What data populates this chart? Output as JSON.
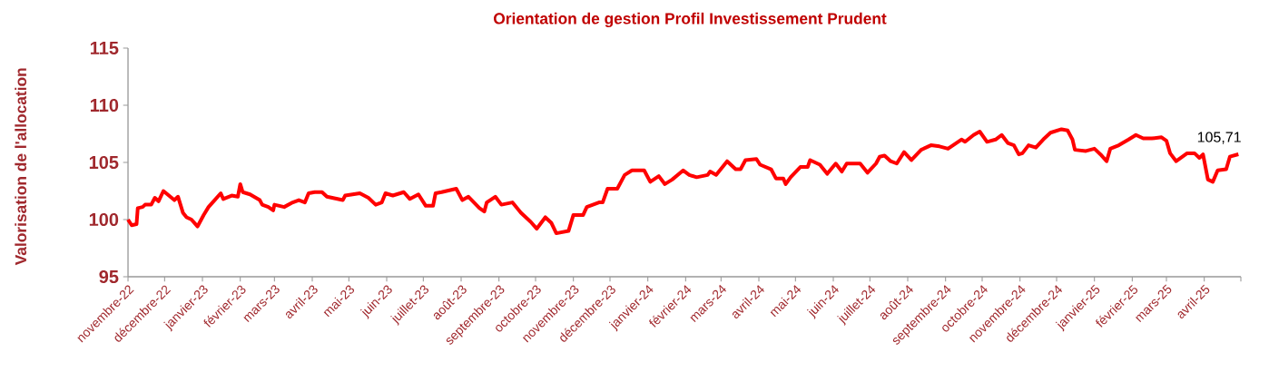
{
  "chart_data": {
    "type": "line",
    "title": "Orientation de gestion Profil Investissement Prudent",
    "ylabel": "Valorisation de l'allocation",
    "xlim": [
      "2022-11-01",
      "2025-05-01"
    ],
    "xticks": [
      {
        "value": "2022-11-01",
        "label": "novembre-22"
      },
      {
        "value": "2022-12-01",
        "label": "décembre-22"
      },
      {
        "value": "2023-01-01",
        "label": "janvier-23"
      },
      {
        "value": "2023-02-01",
        "label": "février-23"
      },
      {
        "value": "2023-03-01",
        "label": "mars-23"
      },
      {
        "value": "2023-04-01",
        "label": "avril-23"
      },
      {
        "value": "2023-05-01",
        "label": "mai-23"
      },
      {
        "value": "2023-06-01",
        "label": "juin-23"
      },
      {
        "value": "2023-07-01",
        "label": "juillet-23"
      },
      {
        "value": "2023-08-01",
        "label": "août-23"
      },
      {
        "value": "2023-09-01",
        "label": "septembre-23"
      },
      {
        "value": "2023-10-01",
        "label": "octobre-23"
      },
      {
        "value": "2023-11-01",
        "label": "novembre-23"
      },
      {
        "value": "2023-12-01",
        "label": "décembre-23"
      },
      {
        "value": "2024-01-01",
        "label": "janvier-24"
      },
      {
        "value": "2024-02-01",
        "label": "février-24"
      },
      {
        "value": "2024-03-01",
        "label": "mars-24"
      },
      {
        "value": "2024-04-01",
        "label": "avril-24"
      },
      {
        "value": "2024-05-01",
        "label": "mai-24"
      },
      {
        "value": "2024-06-01",
        "label": "juin-24"
      },
      {
        "value": "2024-07-01",
        "label": "juillet-24"
      },
      {
        "value": "2024-08-01",
        "label": "août-24"
      },
      {
        "value": "2024-09-01",
        "label": "septembre-24"
      },
      {
        "value": "2024-10-01",
        "label": "octobre-24"
      },
      {
        "value": "2024-11-01",
        "label": "novembre-24"
      },
      {
        "value": "2024-12-01",
        "label": "décembre-24"
      },
      {
        "value": "2025-01-01",
        "label": "janvier-25"
      },
      {
        "value": "2025-02-01",
        "label": "février-25"
      },
      {
        "value": "2025-03-01",
        "label": "mars-25"
      },
      {
        "value": "2025-04-01",
        "label": "avril-25"
      },
      {
        "value": "2025-05-01",
        "label": null
      }
    ],
    "ylim": [
      95,
      115
    ],
    "yticks": [
      95,
      100,
      105,
      110,
      115
    ],
    "grid": false,
    "marker": "none",
    "line_style": "solid",
    "annotations": [
      {
        "text": "105,71",
        "x": "2025-04-29",
        "y": 105.71
      }
    ],
    "series": [
      {
        "color": "#ff0000",
        "x": [
          "2022-11-01",
          "2022-11-04",
          "2022-11-08",
          "2022-11-09",
          "2022-11-13",
          "2022-11-15",
          "2022-11-20",
          "2022-11-23",
          "2022-11-26",
          "2022-11-30",
          "2022-12-09",
          "2022-12-12",
          "2022-12-16",
          "2022-12-19",
          "2022-12-23",
          "2022-12-28",
          "2023-01-02",
          "2023-01-06",
          "2023-01-11",
          "2023-01-16",
          "2023-01-18",
          "2023-01-25",
          "2023-01-30",
          "2023-02-01",
          "2023-02-03",
          "2023-02-09",
          "2023-02-17",
          "2023-02-19",
          "2023-02-24",
          "2023-02-28",
          "2023-03-01",
          "2023-03-09",
          "2023-03-16",
          "2023-03-21",
          "2023-03-26",
          "2023-03-29",
          "2023-04-03",
          "2023-04-09",
          "2023-04-13",
          "2023-04-26",
          "2023-04-28",
          "2023-05-10",
          "2023-05-17",
          "2023-05-23",
          "2023-05-28",
          "2023-05-31",
          "2023-06-06",
          "2023-06-15",
          "2023-06-20",
          "2023-06-27",
          "2023-07-03",
          "2023-07-09",
          "2023-07-11",
          "2023-07-16",
          "2023-07-28",
          "2023-08-02",
          "2023-08-07",
          "2023-08-16",
          "2023-08-20",
          "2023-08-22",
          "2023-08-29",
          "2023-09-03",
          "2023-09-12",
          "2023-09-19",
          "2023-09-27",
          "2023-10-02",
          "2023-10-09",
          "2023-10-14",
          "2023-10-18",
          "2023-10-28",
          "2023-11-01",
          "2023-11-09",
          "2023-11-12",
          "2023-11-22",
          "2023-11-25",
          "2023-11-29",
          "2023-12-07",
          "2023-12-13",
          "2023-12-19",
          "2023-12-29",
          "2024-01-03",
          "2024-01-10",
          "2024-01-15",
          "2024-01-21",
          "2024-01-30",
          "2024-02-04",
          "2024-02-10",
          "2024-02-19",
          "2024-02-21",
          "2024-02-26",
          "2024-03-06",
          "2024-03-13",
          "2024-03-17",
          "2024-03-21",
          "2024-03-30",
          "2024-04-02",
          "2024-04-11",
          "2024-04-15",
          "2024-04-21",
          "2024-04-23",
          "2024-04-27",
          "2024-05-05",
          "2024-05-11",
          "2024-05-13",
          "2024-05-21",
          "2024-05-27",
          "2024-06-03",
          "2024-06-08",
          "2024-06-12",
          "2024-06-23",
          "2024-06-29",
          "2024-07-06",
          "2024-07-09",
          "2024-07-13",
          "2024-07-18",
          "2024-07-23",
          "2024-07-29",
          "2024-08-04",
          "2024-08-12",
          "2024-08-20",
          "2024-08-27",
          "2024-09-03",
          "2024-09-14",
          "2024-09-17",
          "2024-09-24",
          "2024-09-29",
          "2024-10-05",
          "2024-10-12",
          "2024-10-17",
          "2024-10-22",
          "2024-10-27",
          "2024-10-31",
          "2024-11-03",
          "2024-11-08",
          "2024-11-14",
          "2024-11-20",
          "2024-11-26",
          "2024-12-05",
          "2024-12-10",
          "2024-12-14",
          "2024-12-16",
          "2024-12-25",
          "2025-01-01",
          "2025-01-06",
          "2025-01-11",
          "2025-01-14",
          "2025-01-21",
          "2025-01-29",
          "2025-02-04",
          "2025-02-10",
          "2025-02-17",
          "2025-02-25",
          "2025-03-01",
          "2025-03-04",
          "2025-03-09",
          "2025-03-18",
          "2025-03-24",
          "2025-03-28",
          "2025-03-31",
          "2025-04-04",
          "2025-04-08",
          "2025-04-12",
          "2025-04-19",
          "2025-04-22",
          "2025-04-29"
        ],
        "values": [
          100.0,
          99.5,
          99.6,
          101.0,
          101.1,
          101.3,
          101.3,
          101.9,
          101.6,
          102.5,
          101.7,
          102.0,
          100.6,
          100.2,
          100.0,
          99.4,
          100.4,
          101.1,
          101.7,
          102.3,
          101.8,
          102.1,
          102.0,
          103.1,
          102.4,
          102.2,
          101.7,
          101.3,
          101.1,
          100.8,
          101.3,
          101.1,
          101.5,
          101.7,
          101.5,
          102.3,
          102.4,
          102.4,
          102.0,
          101.7,
          102.1,
          102.3,
          101.9,
          101.3,
          101.5,
          102.3,
          102.1,
          102.4,
          101.8,
          102.2,
          101.2,
          101.2,
          102.3,
          102.4,
          102.7,
          101.7,
          102.0,
          101.0,
          100.7,
          101.5,
          102.0,
          101.3,
          101.5,
          100.6,
          99.8,
          99.2,
          100.2,
          99.7,
          98.8,
          99.0,
          100.4,
          100.4,
          101.1,
          101.5,
          101.5,
          102.7,
          102.7,
          103.9,
          104.3,
          104.3,
          103.3,
          103.8,
          103.1,
          103.5,
          104.3,
          103.9,
          103.7,
          103.9,
          104.2,
          103.9,
          105.1,
          104.4,
          104.4,
          105.2,
          105.3,
          104.8,
          104.4,
          103.6,
          103.6,
          103.1,
          103.7,
          104.6,
          104.6,
          105.2,
          104.8,
          104.0,
          104.9,
          104.2,
          104.9,
          104.9,
          104.1,
          104.9,
          105.5,
          105.6,
          105.1,
          104.9,
          105.9,
          105.2,
          106.1,
          106.5,
          106.4,
          106.2,
          107.0,
          106.8,
          107.4,
          107.7,
          106.8,
          107.0,
          107.4,
          106.7,
          106.5,
          105.7,
          105.8,
          106.5,
          106.3,
          107.0,
          107.6,
          107.9,
          107.8,
          107.0,
          106.1,
          106.0,
          106.2,
          105.7,
          105.1,
          106.2,
          106.5,
          107.0,
          107.4,
          107.1,
          107.1,
          107.2,
          106.9,
          105.8,
          105.1,
          105.8,
          105.8,
          105.4,
          105.7,
          103.5,
          103.3,
          104.3,
          104.4,
          105.5,
          105.71
        ]
      }
    ]
  }
}
